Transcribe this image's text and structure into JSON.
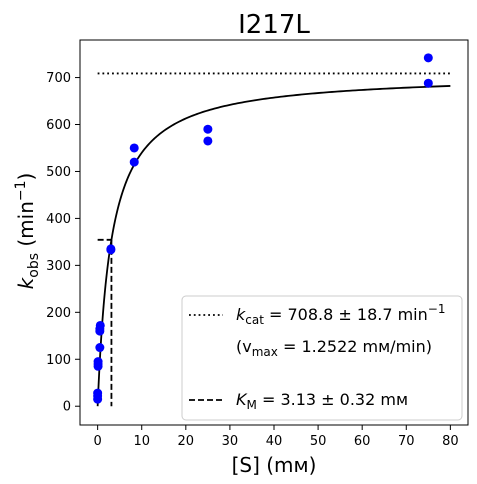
{
  "chart_data": {
    "type": "scatter",
    "title": "I217L",
    "xlabel": "[S] (mм)",
    "ylabel_main": "k",
    "ylabel_sub": "obs",
    "ylabel_unit_prefix": "(min",
    "ylabel_unit_sup": "−1",
    "ylabel_unit_suffix": ")",
    "xlim": [
      -4,
      84
    ],
    "ylim": [
      -40,
      780
    ],
    "xticks": [
      0,
      10,
      20,
      30,
      40,
      50,
      60,
      70,
      80
    ],
    "yticks": [
      0,
      100,
      200,
      300,
      400,
      500,
      600,
      700
    ],
    "grid": false,
    "legend_position": "lower right",
    "points": {
      "color": "#0000ff",
      "x": [
        0,
        0,
        0,
        0.1,
        0.1,
        0.1,
        0.5,
        0.5,
        0.5,
        0.6,
        3,
        3,
        8.3,
        8.3,
        25,
        25,
        75,
        75
      ],
      "y": [
        15,
        22,
        28,
        85,
        90,
        95,
        125,
        160,
        165,
        172,
        333,
        335,
        520,
        550,
        565,
        590,
        688,
        742
      ]
    },
    "fit": {
      "model": "michaelis-menten",
      "kcat": 708.8,
      "km": 3.13,
      "x_range": [
        0,
        80
      ],
      "color": "#000000"
    },
    "kcat_line": {
      "y": 708.8,
      "x_range": [
        0,
        80
      ],
      "style": "dotted"
    },
    "km_line": {
      "x": 3.13,
      "y_top": 354.4,
      "x_start": 0,
      "style": "dashed"
    },
    "legend": {
      "kcat_label_main": "k",
      "kcat_label_sub": "cat",
      "kcat_label_value": " = 708.8 ± 18.7 min",
      "kcat_label_sup": "−1",
      "vmax_open": "(v",
      "vmax_sub": "max",
      "vmax_value": " = 1.2522 mм/min)",
      "km_label_main": "K",
      "km_label_sub": "M",
      "km_label_value": " = 3.13 ± 0.32 mм"
    }
  }
}
